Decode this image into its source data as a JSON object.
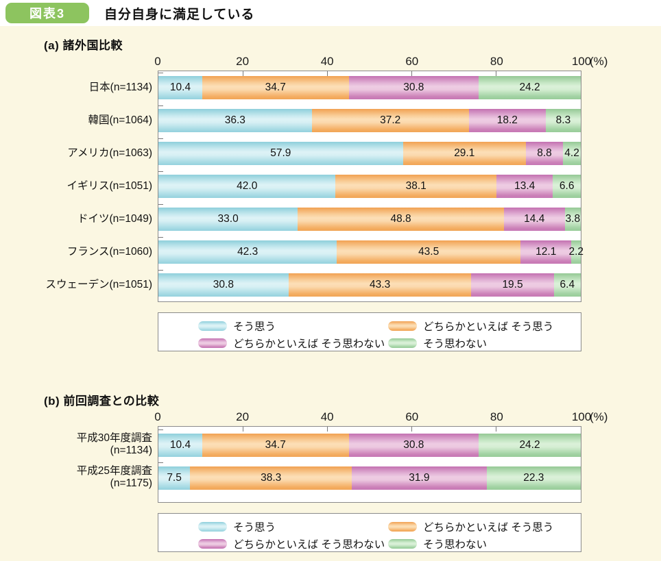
{
  "header": {
    "badge": "図表3",
    "title": "自分自身に満足している",
    "badge_color": "#8dc45f"
  },
  "panel_background": "#fbf7e2",
  "legend": {
    "items": [
      {
        "key": "agree",
        "label": "そう思う",
        "color": "#a9dde7"
      },
      {
        "key": "somewhat_agree",
        "label": "どちらかといえば そう思う",
        "color": "#f6b46a"
      },
      {
        "key": "somewhat_disagree",
        "label": "どちらかといえば そう思わない",
        "color": "#cc84ba"
      },
      {
        "key": "disagree",
        "label": "そう思わない",
        "color": "#a6d4a7"
      }
    ]
  },
  "chart_data": [
    {
      "type": "bar",
      "stacked": true,
      "orientation": "horizontal",
      "title": "(a) 諸外国比較",
      "unit_label": "(%)",
      "xlim": [
        0,
        100
      ],
      "x_ticks": [
        0,
        20,
        40,
        60,
        80,
        100
      ],
      "grid": false,
      "legend_position": "bottom-box",
      "categories": [
        [
          "日本(n=1134)"
        ],
        [
          "韓国(n=1064)"
        ],
        [
          "アメリカ(n=1063)"
        ],
        [
          "イギリス(n=1051)"
        ],
        [
          "ドイツ(n=1049)"
        ],
        [
          "フランス(n=1060)"
        ],
        [
          "スウェーデン(n=1051)"
        ]
      ],
      "series": [
        {
          "name": "そう思う",
          "values": [
            10.4,
            36.3,
            57.9,
            42.0,
            33.0,
            42.3,
            30.8
          ]
        },
        {
          "name": "どちらかといえば そう思う",
          "values": [
            34.7,
            37.2,
            29.1,
            38.1,
            48.8,
            43.5,
            43.3
          ]
        },
        {
          "name": "どちらかといえば そう思わない",
          "values": [
            30.8,
            18.2,
            8.8,
            13.4,
            14.4,
            12.1,
            19.5
          ]
        },
        {
          "name": "そう思わない",
          "values": [
            24.2,
            8.3,
            4.2,
            6.6,
            3.8,
            2.2,
            6.4
          ]
        }
      ]
    },
    {
      "type": "bar",
      "stacked": true,
      "orientation": "horizontal",
      "title": "(b) 前回調査との比較",
      "unit_label": "(%)",
      "xlim": [
        0,
        100
      ],
      "x_ticks": [
        0,
        20,
        40,
        60,
        80,
        100
      ],
      "grid": false,
      "legend_position": "bottom-box",
      "categories": [
        [
          "平成30年度調査",
          "(n=1134)"
        ],
        [
          "平成25年度調査",
          "(n=1175)"
        ]
      ],
      "series": [
        {
          "name": "そう思う",
          "values": [
            10.4,
            7.5
          ]
        },
        {
          "name": "どちらかといえば そう思う",
          "values": [
            34.7,
            38.3
          ]
        },
        {
          "name": "どちらかといえば そう思わない",
          "values": [
            30.8,
            31.9
          ]
        },
        {
          "name": "そう思わない",
          "values": [
            24.2,
            22.3
          ]
        }
      ]
    }
  ]
}
